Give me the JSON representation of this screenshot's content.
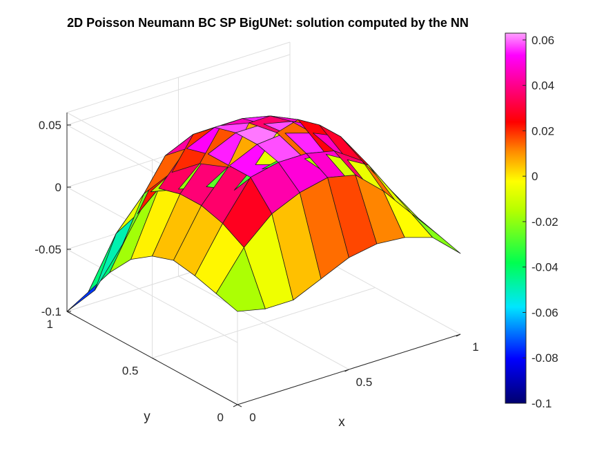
{
  "chart_data": {
    "type": "surface",
    "title": "2D Poisson Neumann BC SP BigUNet: solution computed by the NN",
    "xlabel": "x",
    "ylabel": "y",
    "zlabel": "",
    "xlim": [
      0,
      1
    ],
    "ylim": [
      0,
      1
    ],
    "zlim": [
      -0.1,
      0.06
    ],
    "x_ticks": [
      "0",
      "0.5",
      "1"
    ],
    "y_ticks": [
      "0",
      "0.5",
      "1"
    ],
    "z_ticks": [
      "-0.1",
      "-0.05",
      "0",
      "0.05"
    ],
    "grid": true,
    "colormap": "hsv-like",
    "colorbar": {
      "location": "right",
      "limits": [
        -0.1,
        0.063
      ],
      "ticks": [
        "-0.1",
        "-0.08",
        "-0.06",
        "-0.04",
        "-0.02",
        "0",
        "0.02",
        "0.04",
        "0.06"
      ]
    },
    "x": [
      0,
      0.125,
      0.25,
      0.375,
      0.5,
      0.625,
      0.75,
      0.875,
      1
    ],
    "y": [
      0,
      0.125,
      0.25,
      0.375,
      0.5,
      0.625,
      0.75,
      0.875,
      1
    ],
    "z": [
      [
        -0.025,
        -0.03,
        -0.03,
        -0.02,
        -0.01,
        -0.006,
        -0.008,
        -0.015,
        -0.035
      ],
      [
        -0.02,
        0.01,
        0.03,
        0.04,
        0.045,
        0.04,
        0.02,
        -0.005,
        -0.03
      ],
      [
        -0.015,
        0.02,
        0.05,
        0.055,
        0.055,
        0.05,
        0.035,
        0.005,
        -0.025
      ],
      [
        -0.012,
        0.025,
        0.05,
        0.06,
        0.062,
        0.055,
        0.045,
        0.015,
        -0.022
      ],
      [
        -0.018,
        0.025,
        0.05,
        0.06,
        0.06,
        0.055,
        0.045,
        0.01,
        -0.025
      ],
      [
        -0.03,
        0.02,
        0.045,
        0.055,
        0.055,
        0.05,
        0.04,
        0.005,
        -0.028
      ],
      [
        -0.05,
        -0.01,
        0.03,
        0.04,
        0.04,
        0.035,
        0.02,
        -0.008,
        -0.03
      ],
      [
        -0.075,
        -0.035,
        -0.01,
        0.0,
        0.0,
        -0.01,
        -0.015,
        -0.022,
        -0.035
      ],
      [
        -0.1,
        -0.09,
        -0.06,
        -0.025,
        -0.03,
        -0.035,
        -0.045,
        -0.035,
        -0.03
      ]
    ]
  },
  "colors": {
    "axis": "#262626",
    "grid": "#dedede",
    "edge": "#1a1a1a"
  }
}
